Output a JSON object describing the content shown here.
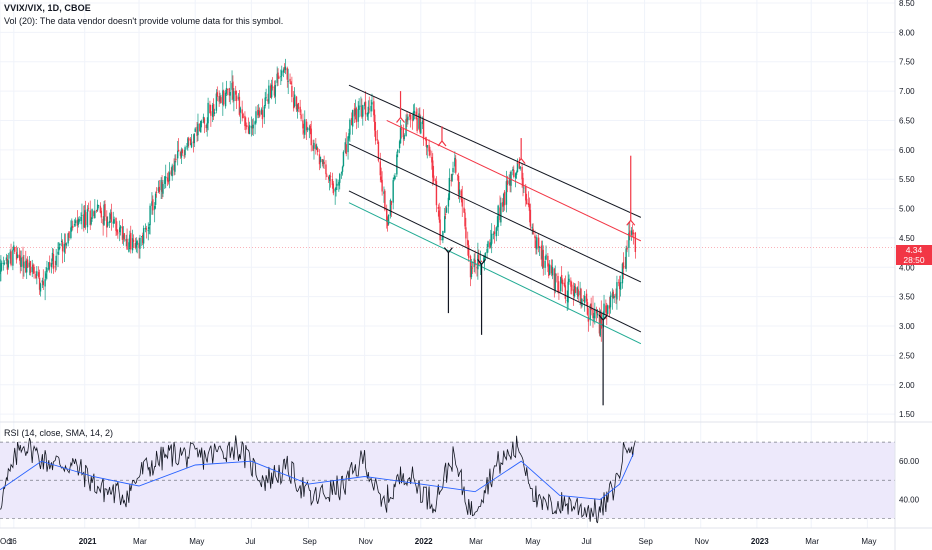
{
  "legend": {
    "title": "VVIX/VIX, 1D, CBOE",
    "volume_note": "Vol (20): The data vendor doesn't provide volume data for this symbol.",
    "rsi": "RSI (14, close, SMA, 14, 2)"
  },
  "price_label": {
    "value": "4.34",
    "countdown": "28:50"
  },
  "colors": {
    "up": "#089981",
    "down": "#f23645",
    "grid": "#f0f3fa",
    "channel_black": "#131722",
    "channel_red": "#f23645",
    "channel_teal": "#22ab94",
    "rsi_line": "#131722",
    "rsi_ma": "#2962ff",
    "rsi_band": "#ede9fb",
    "price_line": "#f23645"
  },
  "chart_data": [
    {
      "type": "candlestick",
      "title": "VVIX/VIX, 1D, CBOE",
      "y_ticks": [
        "8.50",
        "8.00",
        "7.50",
        "7.00",
        "6.50",
        "6.00",
        "5.50",
        "5.00",
        "4.50",
        "4.00",
        "3.50",
        "3.00",
        "2.50",
        "2.00",
        "1.50"
      ],
      "x_ticks": [
        "Oct",
        "16",
        "2021",
        "Mar",
        "May",
        "Jul",
        "Sep",
        "Nov",
        "2022",
        "Mar",
        "May",
        "Jul",
        "Sep",
        "Nov",
        "2023",
        "Mar",
        "May"
      ],
      "ylim": [
        1.4,
        8.5
      ],
      "x_range": [
        "2020-10-01",
        "2023-05-31"
      ],
      "last_value": 4.34,
      "trend": [
        {
          "date": "2020-10-01",
          "value": 3.9
        },
        {
          "date": "2020-10-16",
          "value": 4.25
        },
        {
          "date": "2020-11-15",
          "value": 3.8
        },
        {
          "date": "2020-12-15",
          "value": 4.6
        },
        {
          "date": "2021-01-15",
          "value": 5.0
        },
        {
          "date": "2021-02-10",
          "value": 4.6
        },
        {
          "date": "2021-03-01",
          "value": 4.3
        },
        {
          "date": "2021-03-20",
          "value": 5.2
        },
        {
          "date": "2021-04-15",
          "value": 5.9
        },
        {
          "date": "2021-05-15",
          "value": 6.6
        },
        {
          "date": "2021-06-10",
          "value": 7.1
        },
        {
          "date": "2021-06-28",
          "value": 6.3
        },
        {
          "date": "2021-07-20",
          "value": 6.9
        },
        {
          "date": "2021-08-05",
          "value": 7.4
        },
        {
          "date": "2021-08-25",
          "value": 6.5
        },
        {
          "date": "2021-09-15",
          "value": 5.8
        },
        {
          "date": "2021-10-01",
          "value": 5.2
        },
        {
          "date": "2021-10-20",
          "value": 6.6
        },
        {
          "date": "2021-11-10",
          "value": 6.7
        },
        {
          "date": "2021-11-26",
          "value": 4.7
        },
        {
          "date": "2021-12-10",
          "value": 6.3
        },
        {
          "date": "2021-12-25",
          "value": 6.6
        },
        {
          "date": "2022-01-10",
          "value": 6.2
        },
        {
          "date": "2022-01-24",
          "value": 4.4
        },
        {
          "date": "2022-02-07",
          "value": 5.9
        },
        {
          "date": "2022-02-24",
          "value": 4.0
        },
        {
          "date": "2022-03-10",
          "value": 4.1
        },
        {
          "date": "2022-03-20",
          "value": 4.6
        },
        {
          "date": "2022-04-10",
          "value": 5.6
        },
        {
          "date": "2022-04-18",
          "value": 5.75
        },
        {
          "date": "2022-05-01",
          "value": 4.7
        },
        {
          "date": "2022-05-15",
          "value": 4.1
        },
        {
          "date": "2022-06-01",
          "value": 3.7
        },
        {
          "date": "2022-06-20",
          "value": 3.55
        },
        {
          "date": "2022-07-01",
          "value": 3.3
        },
        {
          "date": "2022-07-15",
          "value": 3.05
        },
        {
          "date": "2022-08-01",
          "value": 3.6
        },
        {
          "date": "2022-08-10",
          "value": 4.0
        },
        {
          "date": "2022-08-17",
          "value": 4.55
        },
        {
          "date": "2022-08-23",
          "value": 4.34
        }
      ],
      "channel": {
        "upper_black": [
          {
            "date": "2021-10-15",
            "value": 7.1
          },
          {
            "date": "2022-08-28",
            "value": 4.85
          }
        ],
        "red_line": [
          {
            "date": "2021-11-25",
            "value": 6.5
          },
          {
            "date": "2022-08-28",
            "value": 4.45
          }
        ],
        "middle_black": [
          {
            "date": "2021-10-15",
            "value": 6.1
          },
          {
            "date": "2022-08-28",
            "value": 3.75
          }
        ],
        "lower_black": [
          {
            "date": "2021-10-15",
            "value": 5.3
          },
          {
            "date": "2022-08-28",
            "value": 2.9
          }
        ],
        "teal_line": [
          {
            "date": "2021-10-15",
            "value": 5.1
          },
          {
            "date": "2022-08-28",
            "value": 2.7
          }
        ]
      },
      "arrows": [
        {
          "dir": "down",
          "date": "2021-12-10",
          "from": 7.0,
          "to": 6.55
        },
        {
          "dir": "down",
          "date": "2022-01-24",
          "from": 6.4,
          "to": 6.15
        },
        {
          "dir": "down",
          "date": "2022-04-20",
          "from": 6.2,
          "to": 5.85
        },
        {
          "dir": "down",
          "date": "2022-08-17",
          "from": 5.9,
          "to": 4.8
        },
        {
          "dir": "up",
          "date": "2022-01-31",
          "from": 3.22,
          "to": 4.25
        },
        {
          "dir": "up",
          "date": "2022-03-08",
          "from": 2.85,
          "to": 4.05
        },
        {
          "dir": "up",
          "date": "2022-07-18",
          "from": 1.65,
          "to": 3.1
        }
      ]
    },
    {
      "type": "line",
      "title": "RSI (14, close, SMA, 14, 2)",
      "y_ticks": [
        "60.00",
        "40.00"
      ],
      "band": [
        30,
        70
      ],
      "midline": 50,
      "ylim": [
        25,
        80
      ],
      "rsi": [
        {
          "date": "2020-10-01",
          "value": 38
        },
        {
          "date": "2020-10-25",
          "value": 70
        },
        {
          "date": "2020-11-20",
          "value": 60
        },
        {
          "date": "2020-12-20",
          "value": 58
        },
        {
          "date": "2021-01-20",
          "value": 45
        },
        {
          "date": "2021-02-15",
          "value": 42
        },
        {
          "date": "2021-03-05",
          "value": 55
        },
        {
          "date": "2021-04-05",
          "value": 64
        },
        {
          "date": "2021-05-10",
          "value": 62
        },
        {
          "date": "2021-06-15",
          "value": 68
        },
        {
          "date": "2021-07-15",
          "value": 50
        },
        {
          "date": "2021-08-10",
          "value": 56
        },
        {
          "date": "2021-09-05",
          "value": 40
        },
        {
          "date": "2021-10-10",
          "value": 47
        },
        {
          "date": "2021-11-01",
          "value": 62
        },
        {
          "date": "2021-11-20",
          "value": 36
        },
        {
          "date": "2021-12-15",
          "value": 55
        },
        {
          "date": "2022-01-15",
          "value": 38
        },
        {
          "date": "2022-02-05",
          "value": 62
        },
        {
          "date": "2022-02-25",
          "value": 33
        },
        {
          "date": "2022-03-25",
          "value": 58
        },
        {
          "date": "2022-04-18",
          "value": 68
        },
        {
          "date": "2022-05-10",
          "value": 36
        },
        {
          "date": "2022-06-10",
          "value": 38
        },
        {
          "date": "2022-07-15",
          "value": 33
        },
        {
          "date": "2022-08-01",
          "value": 48
        },
        {
          "date": "2022-08-15",
          "value": 73
        },
        {
          "date": "2022-08-23",
          "value": 64
        }
      ],
      "rsi_ma": [
        {
          "date": "2020-10-01",
          "value": 45
        },
        {
          "date": "2020-11-15",
          "value": 60
        },
        {
          "date": "2021-01-10",
          "value": 52
        },
        {
          "date": "2021-03-01",
          "value": 47
        },
        {
          "date": "2021-05-01",
          "value": 58
        },
        {
          "date": "2021-07-01",
          "value": 60
        },
        {
          "date": "2021-09-01",
          "value": 48
        },
        {
          "date": "2021-11-01",
          "value": 52
        },
        {
          "date": "2022-01-01",
          "value": 48
        },
        {
          "date": "2022-03-01",
          "value": 44
        },
        {
          "date": "2022-04-20",
          "value": 60
        },
        {
          "date": "2022-06-01",
          "value": 42
        },
        {
          "date": "2022-07-15",
          "value": 40
        },
        {
          "date": "2022-08-05",
          "value": 48
        },
        {
          "date": "2022-08-20",
          "value": 64
        }
      ]
    }
  ]
}
